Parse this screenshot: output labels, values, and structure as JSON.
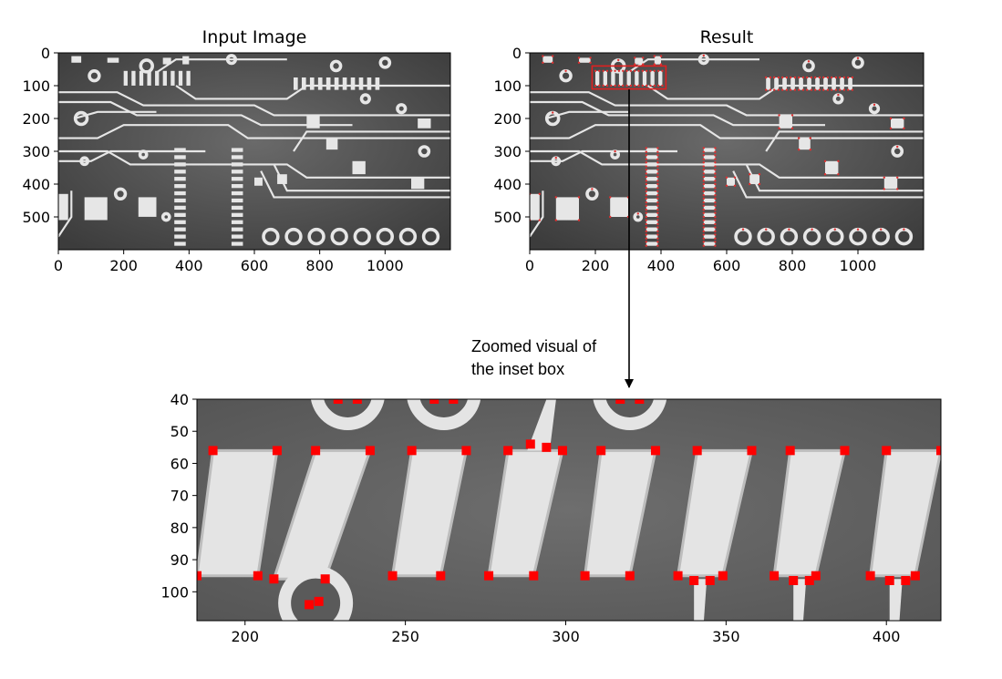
{
  "chart_data": [
    {
      "type": "image",
      "title": "Input Image",
      "xlim": [
        0,
        1200
      ],
      "ylim": [
        600,
        0
      ],
      "xticks": [
        0,
        200,
        400,
        600,
        800,
        1000
      ],
      "yticks": [
        0,
        100,
        200,
        300,
        400,
        500
      ]
    },
    {
      "type": "image",
      "title": "Result",
      "xlim": [
        0,
        1200
      ],
      "ylim": [
        600,
        0
      ],
      "xticks": [
        0,
        200,
        400,
        600,
        800,
        1000
      ],
      "yticks": [
        0,
        100,
        200,
        300,
        400,
        500
      ],
      "inset_box": {
        "x0": 190,
        "x1": 415,
        "y0": 40,
        "y1": 110,
        "color": "#e02020"
      }
    },
    {
      "type": "image",
      "title": "",
      "xlim": [
        185,
        417
      ],
      "ylim": [
        109,
        40
      ],
      "xticks": [
        200,
        250,
        300,
        350,
        400
      ],
      "yticks": [
        40,
        50,
        60,
        70,
        80,
        90,
        100
      ],
      "corner_markers_color": "#ff0000"
    }
  ],
  "annotation": {
    "lines": [
      "Zoomed visual of",
      "the inset box"
    ]
  }
}
